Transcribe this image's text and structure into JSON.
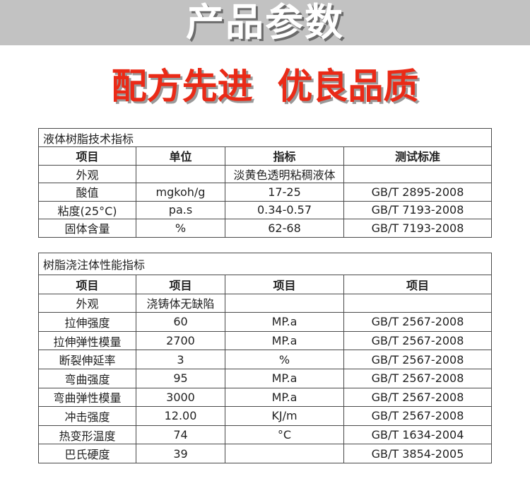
{
  "banner": {
    "title": "产品参数",
    "band_color": "#c2c2c2"
  },
  "slogan": {
    "text": "配方先进  优良品质",
    "color": "#ea2a17"
  },
  "liquid_resin": {
    "caption": "液体树脂技术指标",
    "headers": [
      "项目",
      "单位",
      "指标",
      "测试标准"
    ],
    "rows": [
      [
        "外观",
        "",
        "淡黄色透明粘稠液体",
        ""
      ],
      [
        "酸值",
        "mgkoh/g",
        "17-25",
        "GB/T 2895-2008"
      ],
      [
        "粘度(25°C)",
        "pa.s",
        "0.34-0.57",
        "GB/T 7193-2008"
      ],
      [
        "固体含量",
        "%",
        "62-68",
        "GB/T 7193-2008"
      ]
    ]
  },
  "cast_body": {
    "caption": "树脂浇注体性能指标",
    "headers": [
      "项目",
      "项目",
      "项目",
      "项目"
    ],
    "rows": [
      [
        "外观",
        "浇铸体无缺陷",
        "",
        ""
      ],
      [
        "拉伸强度",
        "60",
        "MP.a",
        "GB/T 2567-2008"
      ],
      [
        "拉伸弹性模量",
        "2700",
        "MP.a",
        "GB/T 2567-2008"
      ],
      [
        "断裂伸延率",
        "3",
        "%",
        "GB/T 2567-2008"
      ],
      [
        "弯曲强度",
        "95",
        "MP.a",
        "GB/T 2567-2008"
      ],
      [
        "弯曲弹性模量",
        "3000",
        "MP.a",
        "GB/T 2567-2008"
      ],
      [
        "冲击强度",
        "12.00",
        "KJ/m",
        "GB/T 2567-2008"
      ],
      [
        "热变形温度",
        "74",
        "°C",
        "GB/T 1634-2004"
      ],
      [
        "巴氏硬度",
        "39",
        "",
        "GB/T 3854-2005"
      ]
    ]
  }
}
